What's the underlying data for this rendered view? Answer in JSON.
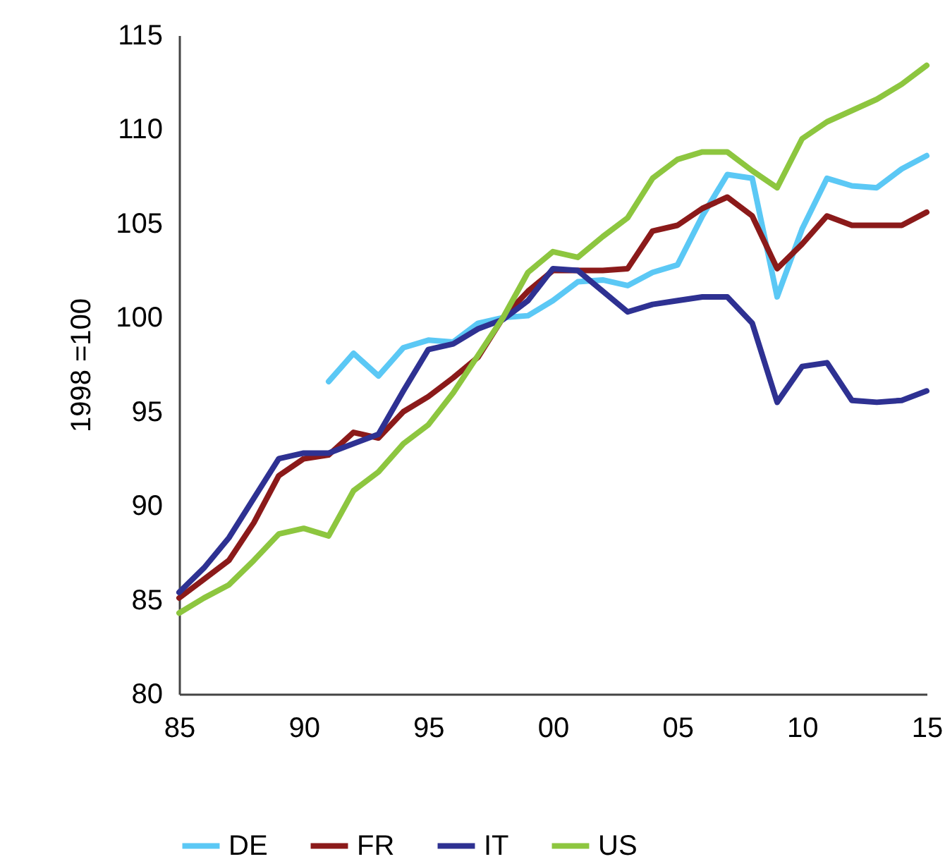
{
  "chart_data": {
    "type": "line",
    "ylabel": "1998 =100",
    "x": [
      1985,
      1986,
      1987,
      1988,
      1989,
      1990,
      1991,
      1992,
      1993,
      1994,
      1995,
      1996,
      1997,
      1998,
      1999,
      2000,
      2001,
      2002,
      2003,
      2004,
      2005,
      2006,
      2007,
      2008,
      2009,
      2010,
      2011,
      2012,
      2013,
      2014,
      2015
    ],
    "series": [
      {
        "name": "DE",
        "color": "#5bc8f5",
        "values": [
          null,
          null,
          null,
          null,
          null,
          null,
          96.6,
          98.1,
          96.9,
          98.4,
          98.8,
          98.7,
          99.7,
          100,
          100.1,
          100.9,
          101.9,
          102.0,
          101.7,
          102.4,
          102.8,
          105.4,
          107.6,
          107.4,
          101.1,
          104.7,
          107.4,
          107.0,
          106.9,
          107.9,
          108.6
        ]
      },
      {
        "name": "FR",
        "color": "#8b1a1a",
        "values": [
          85.1,
          86.1,
          87.1,
          89.1,
          91.6,
          92.5,
          92.7,
          93.9,
          93.6,
          95.0,
          95.8,
          96.8,
          97.9,
          100,
          101.4,
          102.5,
          102.5,
          102.5,
          102.6,
          104.6,
          104.9,
          105.8,
          106.4,
          105.4,
          102.6,
          103.9,
          105.4,
          104.9,
          104.9,
          104.9,
          105.6
        ]
      },
      {
        "name": "IT",
        "color": "#2e3192",
        "values": [
          85.4,
          86.7,
          88.3,
          90.4,
          92.5,
          92.8,
          92.8,
          93.3,
          93.8,
          96.1,
          98.3,
          98.6,
          99.4,
          99.9,
          100.9,
          102.6,
          102.5,
          101.4,
          100.3,
          100.7,
          100.9,
          101.1,
          101.1,
          99.7,
          95.5,
          97.4,
          97.6,
          95.6,
          95.5,
          95.6,
          96.1
        ]
      },
      {
        "name": "US",
        "color": "#8dc63f",
        "values": [
          84.3,
          85.1,
          85.8,
          87.1,
          88.5,
          88.8,
          88.4,
          90.8,
          91.8,
          93.3,
          94.3,
          96.0,
          98.0,
          100,
          102.4,
          103.5,
          103.2,
          104.3,
          105.3,
          107.4,
          108.4,
          108.8,
          108.8,
          107.8,
          106.9,
          109.5,
          110.4,
          111.0,
          111.6,
          112.4,
          113.4
        ]
      }
    ],
    "xlim": [
      1985,
      2015
    ],
    "xticks": [
      {
        "value": 1985,
        "label": "85"
      },
      {
        "value": 1990,
        "label": "90"
      },
      {
        "value": 1995,
        "label": "95"
      },
      {
        "value": 2000,
        "label": "00"
      },
      {
        "value": 2005,
        "label": "05"
      },
      {
        "value": 2010,
        "label": "10"
      },
      {
        "value": 2015,
        "label": "15"
      }
    ],
    "ylim": [
      80,
      115
    ],
    "yticks": [
      80,
      85,
      90,
      95,
      100,
      105,
      110,
      115
    ],
    "grid": false,
    "legend": "bottom",
    "marker": "none",
    "line_style": "solid"
  }
}
